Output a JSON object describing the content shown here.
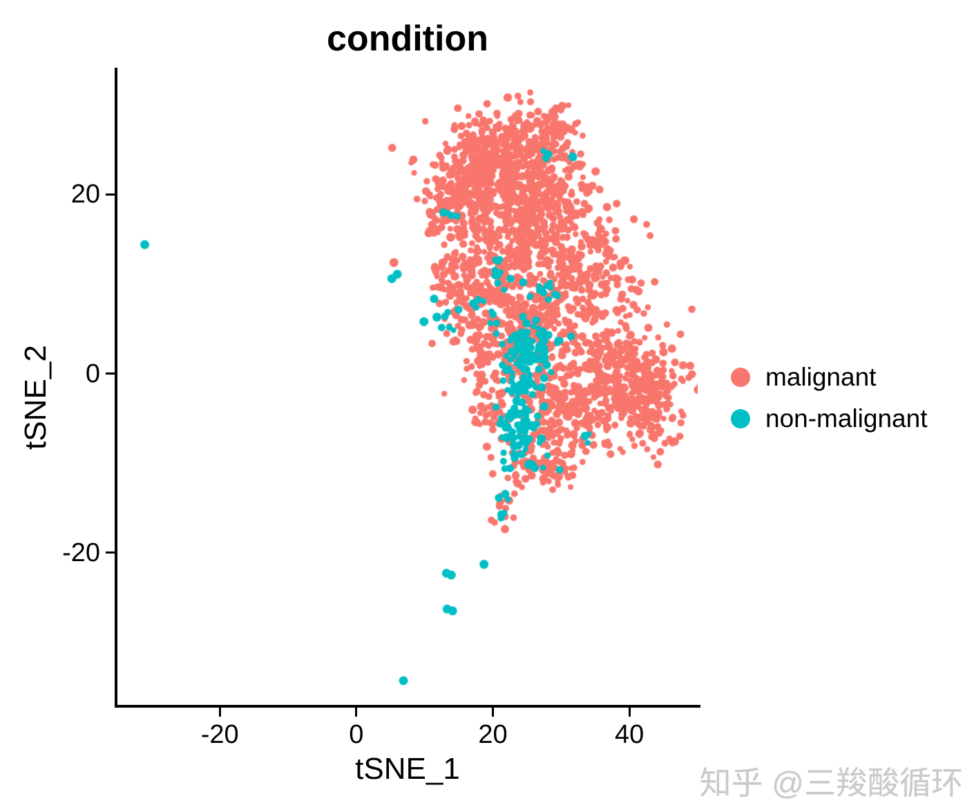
{
  "chart_data": {
    "type": "scatter",
    "title": "condition",
    "xlabel": "tSNE_1",
    "ylabel": "tSNE_2",
    "xlim": [
      -35,
      50
    ],
    "ylim": [
      -37,
      34
    ],
    "xticks": [
      -20,
      0,
      20,
      40
    ],
    "yticks": [
      20,
      0,
      -20
    ],
    "grid": false,
    "legend_position": "right",
    "axis_color": "#000000",
    "series": [
      {
        "name": "malignant",
        "color": "#F8766D",
        "clusters": [
          {
            "cx": 20,
            "cy": 23.5,
            "rx": 4.5,
            "ry": 2.8,
            "n": 380
          },
          {
            "cx": 27,
            "cy": 25.5,
            "rx": 2.8,
            "ry": 2.2,
            "n": 140
          },
          {
            "cx": 14,
            "cy": 19,
            "rx": 2.2,
            "ry": 2,
            "n": 90
          },
          {
            "cx": 21,
            "cy": 17.5,
            "rx": 4.5,
            "ry": 2.5,
            "n": 220
          },
          {
            "cx": 29,
            "cy": 19,
            "rx": 3,
            "ry": 2.5,
            "n": 130
          },
          {
            "cx": 24,
            "cy": 11,
            "rx": 5.5,
            "ry": 3,
            "n": 260
          },
          {
            "cx": 34.5,
            "cy": 11,
            "rx": 3.5,
            "ry": 3,
            "n": 150
          },
          {
            "cx": 15,
            "cy": 10,
            "rx": 2,
            "ry": 2.5,
            "n": 70
          },
          {
            "cx": 38,
            "cy": -0.5,
            "rx": 4.5,
            "ry": 3.5,
            "n": 320
          },
          {
            "cx": 43,
            "cy": -3,
            "rx": 2.5,
            "ry": 2.5,
            "n": 110
          },
          {
            "cx": 30,
            "cy": -4,
            "rx": 3.5,
            "ry": 3,
            "n": 170
          },
          {
            "cx": 21.5,
            "cy": 3.5,
            "rx": 3.5,
            "ry": 3,
            "n": 150
          },
          {
            "cx": 27,
            "cy": 5,
            "rx": 3,
            "ry": 2.5,
            "n": 120
          },
          {
            "cx": 26.5,
            "cy": -9.5,
            "rx": 2.5,
            "ry": 1.8,
            "n": 60
          },
          {
            "cx": 30,
            "cy": -11,
            "rx": 1.2,
            "ry": 0.9,
            "n": 18
          },
          {
            "cx": 19.5,
            "cy": -4.5,
            "rx": 1.8,
            "ry": 1.8,
            "n": 40
          },
          {
            "cx": 21.8,
            "cy": -14.8,
            "rx": 0.8,
            "ry": 1.2,
            "n": 14
          }
        ],
        "points": [
          [
            5.5,
            12.4
          ]
        ]
      },
      {
        "name": "non-malignant",
        "color": "#00BFC4",
        "clusters": [
          {
            "cx": 25,
            "cy": 2.5,
            "rx": 1.7,
            "ry": 1.4,
            "n": 85
          },
          {
            "cx": 24.3,
            "cy": -5.5,
            "rx": 1.5,
            "ry": 1.7,
            "n": 65
          },
          {
            "cx": 23.8,
            "cy": -1.5,
            "rx": 1,
            "ry": 1.3,
            "n": 22
          },
          {
            "cx": 27.3,
            "cy": 9.6,
            "rx": 1.4,
            "ry": 0.9,
            "n": 14
          },
          {
            "cx": 21.5,
            "cy": 10.8,
            "rx": 0.9,
            "ry": 0.7,
            "n": 7
          },
          {
            "cx": 13.3,
            "cy": 6.2,
            "rx": 1.2,
            "ry": 0.9,
            "n": 7
          },
          {
            "cx": 17.2,
            "cy": 8.4,
            "rx": 0.8,
            "ry": 0.6,
            "n": 4
          },
          {
            "cx": 19.8,
            "cy": 6.3,
            "rx": 0.6,
            "ry": 0.6,
            "n": 4
          },
          {
            "cx": 26,
            "cy": -10.5,
            "rx": 1.4,
            "ry": 1.2,
            "n": 10
          },
          {
            "cx": 22,
            "cy": -8.6,
            "rx": 0.9,
            "ry": 0.9,
            "n": 7
          },
          {
            "cx": 13.8,
            "cy": 17.9,
            "rx": 0.7,
            "ry": 0.5,
            "n": 4
          },
          {
            "cx": 27.6,
            "cy": 24.7,
            "rx": 1.1,
            "ry": 0.4,
            "n": 3
          },
          {
            "cx": 20.6,
            "cy": 12.6,
            "rx": 0.6,
            "ry": 0.5,
            "n": 3
          },
          {
            "cx": 29.5,
            "cy": 3.8,
            "rx": 0.8,
            "ry": 0.8,
            "n": 5
          },
          {
            "cx": 21.9,
            "cy": -14.6,
            "rx": 0.6,
            "ry": 0.9,
            "n": 6
          },
          {
            "cx": 33.5,
            "cy": -7,
            "rx": 0.7,
            "ry": 0.7,
            "n": 3
          }
        ],
        "points": [
          [
            -31,
            14.4
          ],
          [
            5.2,
            10.6
          ],
          [
            6,
            11.1
          ],
          [
            9.9,
            5.8
          ],
          [
            11.8,
            6.3
          ],
          [
            31.7,
            24.2
          ],
          [
            18.7,
            -21.3
          ],
          [
            13.2,
            -22.3
          ],
          [
            13.9,
            -22.5
          ],
          [
            13.3,
            -26.3
          ],
          [
            14.1,
            -26.5
          ],
          [
            6.9,
            -34.3
          ]
        ]
      }
    ]
  },
  "watermark": {
    "text": "知乎 @三羧酸循环"
  }
}
